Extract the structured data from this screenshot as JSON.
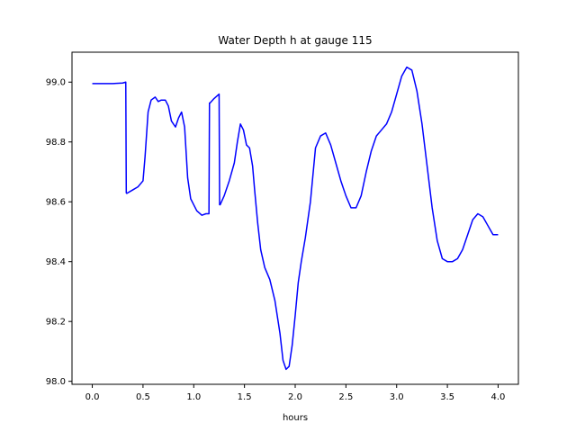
{
  "chart_data": {
    "type": "line",
    "title": "Water Depth h at gauge 115",
    "xlabel": "hours",
    "ylabel": "",
    "xlim": [
      -0.2,
      4.2
    ],
    "ylim": [
      97.99,
      99.1
    ],
    "xticks": [
      0.0,
      0.5,
      1.0,
      1.5,
      2.0,
      2.5,
      3.0,
      3.5,
      4.0
    ],
    "xtick_labels": [
      "0.0",
      "0.5",
      "1.0",
      "1.5",
      "2.0",
      "2.5",
      "3.0",
      "3.5",
      "4.0"
    ],
    "yticks": [
      98.0,
      98.2,
      98.4,
      98.6,
      98.8,
      99.0
    ],
    "ytick_labels": [
      "98.0",
      "98.2",
      "98.4",
      "98.6",
      "98.8",
      "99.0"
    ],
    "grid": false,
    "series": [
      {
        "color": "#0000ff",
        "x": [
          0.0,
          0.1,
          0.2,
          0.3,
          0.33,
          0.335,
          0.34,
          0.4,
          0.45,
          0.5,
          0.52,
          0.55,
          0.58,
          0.62,
          0.65,
          0.68,
          0.72,
          0.75,
          0.78,
          0.82,
          0.85,
          0.88,
          0.91,
          0.94,
          0.97,
          1.0,
          1.03,
          1.08,
          1.12,
          1.15,
          1.155,
          1.16,
          1.2,
          1.25,
          1.255,
          1.26,
          1.3,
          1.35,
          1.4,
          1.43,
          1.46,
          1.49,
          1.52,
          1.55,
          1.58,
          1.6,
          1.63,
          1.66,
          1.7,
          1.75,
          1.8,
          1.85,
          1.88,
          1.91,
          1.94,
          1.97,
          2.0,
          2.03,
          2.06,
          2.1,
          2.15,
          2.2,
          2.25,
          2.3,
          2.35,
          2.4,
          2.45,
          2.5,
          2.55,
          2.6,
          2.65,
          2.7,
          2.75,
          2.8,
          2.85,
          2.9,
          2.95,
          3.0,
          3.05,
          3.1,
          3.15,
          3.2,
          3.25,
          3.3,
          3.35,
          3.4,
          3.45,
          3.5,
          3.55,
          3.6,
          3.65,
          3.7,
          3.75,
          3.8,
          3.85,
          3.9,
          3.95,
          4.0
        ],
        "values": [
          98.995,
          98.995,
          98.995,
          98.997,
          99.0,
          98.63,
          98.628,
          98.64,
          98.65,
          98.67,
          98.75,
          98.9,
          98.94,
          98.95,
          98.935,
          98.94,
          98.94,
          98.92,
          98.87,
          98.85,
          98.88,
          98.9,
          98.85,
          98.68,
          98.61,
          98.59,
          98.57,
          98.555,
          98.56,
          98.56,
          98.93,
          98.93,
          98.945,
          98.96,
          98.59,
          98.59,
          98.62,
          98.67,
          98.73,
          98.8,
          98.86,
          98.84,
          98.79,
          98.78,
          98.72,
          98.64,
          98.53,
          98.44,
          98.38,
          98.34,
          98.27,
          98.16,
          98.07,
          98.04,
          98.05,
          98.12,
          98.22,
          98.33,
          98.4,
          98.48,
          98.6,
          98.78,
          98.82,
          98.83,
          98.79,
          98.73,
          98.67,
          98.62,
          98.58,
          98.58,
          98.62,
          98.7,
          98.77,
          98.82,
          98.84,
          98.86,
          98.9,
          98.96,
          99.02,
          99.05,
          99.04,
          98.97,
          98.86,
          98.72,
          98.58,
          98.47,
          98.41,
          98.4,
          98.4,
          98.41,
          98.44,
          98.49,
          98.54,
          98.56,
          98.55,
          98.52,
          98.49,
          98.49
        ]
      }
    ]
  }
}
